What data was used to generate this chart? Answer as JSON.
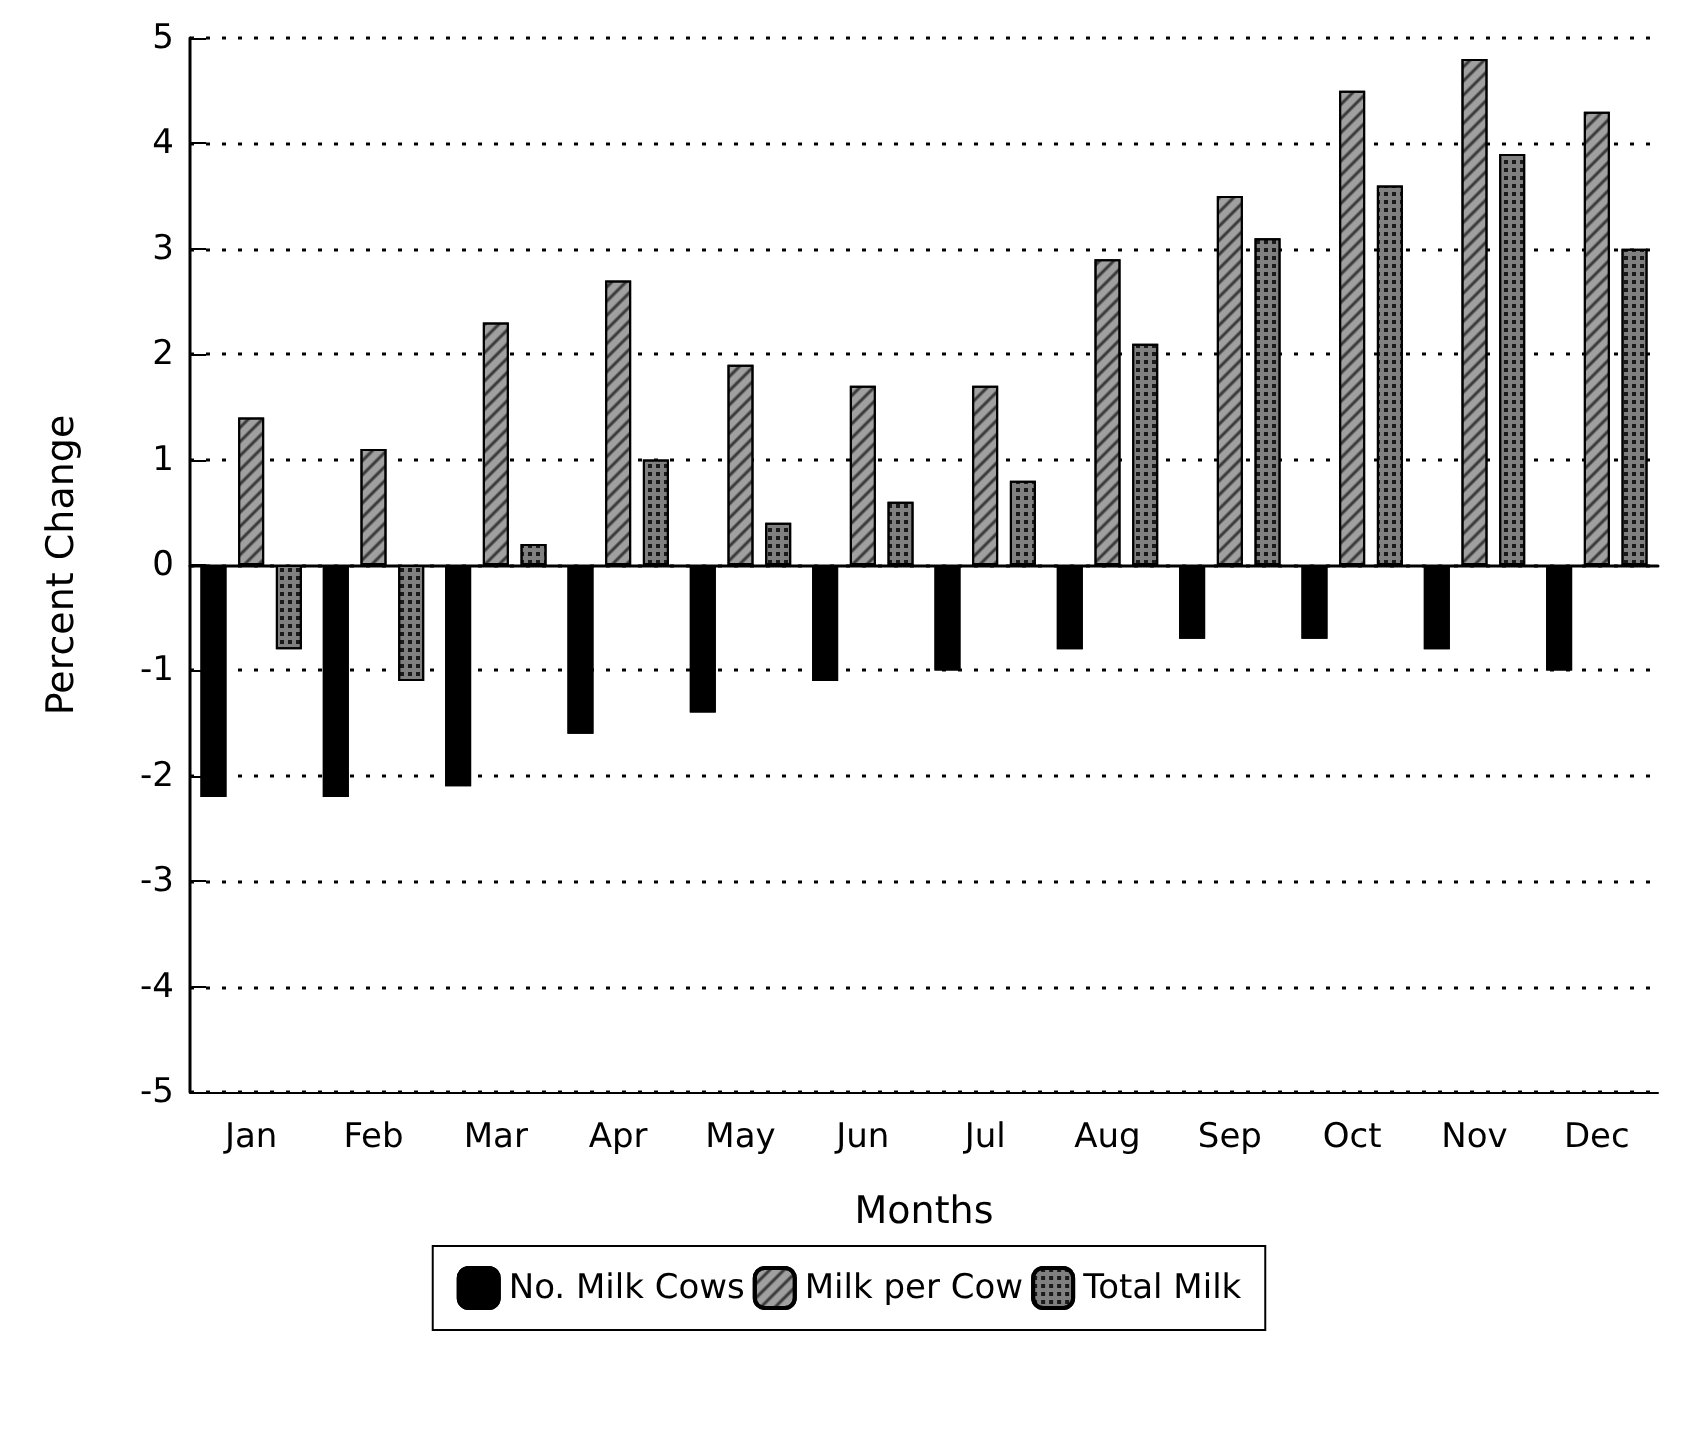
{
  "chart_data": {
    "type": "bar",
    "xlabel": "Months",
    "ylabel": "Percent Change",
    "categories": [
      "Jan",
      "Feb",
      "Mar",
      "Apr",
      "May",
      "Jun",
      "Jul",
      "Aug",
      "Sep",
      "Oct",
      "Nov",
      "Dec"
    ],
    "series": [
      {
        "name": "No. Milk Cows",
        "color": "#000000",
        "values": [
          -2.2,
          -2.2,
          -2.1,
          -1.6,
          -1.4,
          -1.1,
          -1.0,
          -0.8,
          -0.7,
          -0.7,
          -0.8,
          -1.0
        ]
      },
      {
        "name": "Milk per Cow",
        "color": "#a0a0a0",
        "values": [
          1.4,
          1.1,
          2.3,
          2.7,
          1.9,
          1.7,
          1.7,
          2.9,
          3.5,
          4.5,
          4.8,
          4.3
        ]
      },
      {
        "name": "Total Milk",
        "color": "#808080",
        "values": [
          -0.8,
          -1.1,
          0.2,
          1.0,
          0.4,
          0.6,
          0.8,
          2.1,
          3.1,
          3.6,
          3.9,
          3.0
        ]
      }
    ],
    "ylim": [
      -5,
      5
    ],
    "yticks": [
      -5,
      -4,
      -3,
      -2,
      -1,
      0,
      1,
      2,
      3,
      4,
      5
    ],
    "grid": "y",
    "legend": "bottom"
  }
}
